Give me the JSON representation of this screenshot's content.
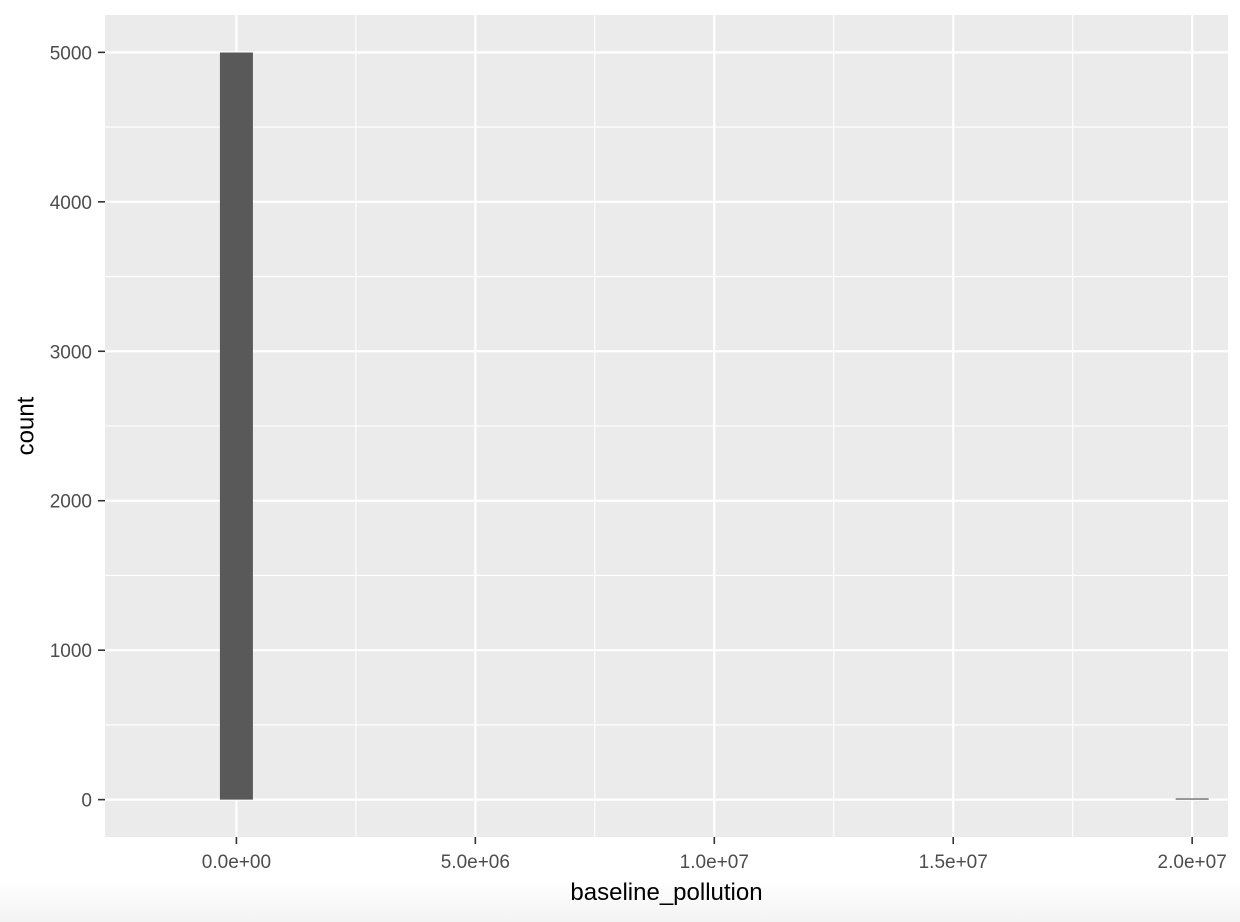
{
  "chart_data": {
    "type": "bar",
    "title": "",
    "xlabel": "baseline_pollution",
    "ylabel": "count",
    "xlim": [
      -2750000,
      20750000
    ],
    "ylim": [
      -250,
      5250
    ],
    "x_ticks": [
      {
        "value": 0,
        "label": "0.0e+00"
      },
      {
        "value": 5000000,
        "label": "5.0e+06"
      },
      {
        "value": 10000000,
        "label": "1.0e+07"
      },
      {
        "value": 15000000,
        "label": "1.5e+07"
      },
      {
        "value": 20000000,
        "label": "2.0e+07"
      }
    ],
    "y_ticks": [
      {
        "value": 0,
        "label": "0"
      },
      {
        "value": 1000,
        "label": "1000"
      },
      {
        "value": 2000,
        "label": "2000"
      },
      {
        "value": 3000,
        "label": "3000"
      },
      {
        "value": 4000,
        "label": "4000"
      },
      {
        "value": 5000,
        "label": "5000"
      }
    ],
    "bin_width": 690000,
    "bins": [
      {
        "x": 0,
        "count": 4999
      },
      {
        "x": 20000000,
        "count": 1
      }
    ],
    "grid": true,
    "colors": {
      "panel_background": "#ebebeb",
      "grid_line": "#ffffff",
      "bar_fill": "#595959",
      "tick_text": "#4d4d4d",
      "title_text": "#000000"
    }
  }
}
